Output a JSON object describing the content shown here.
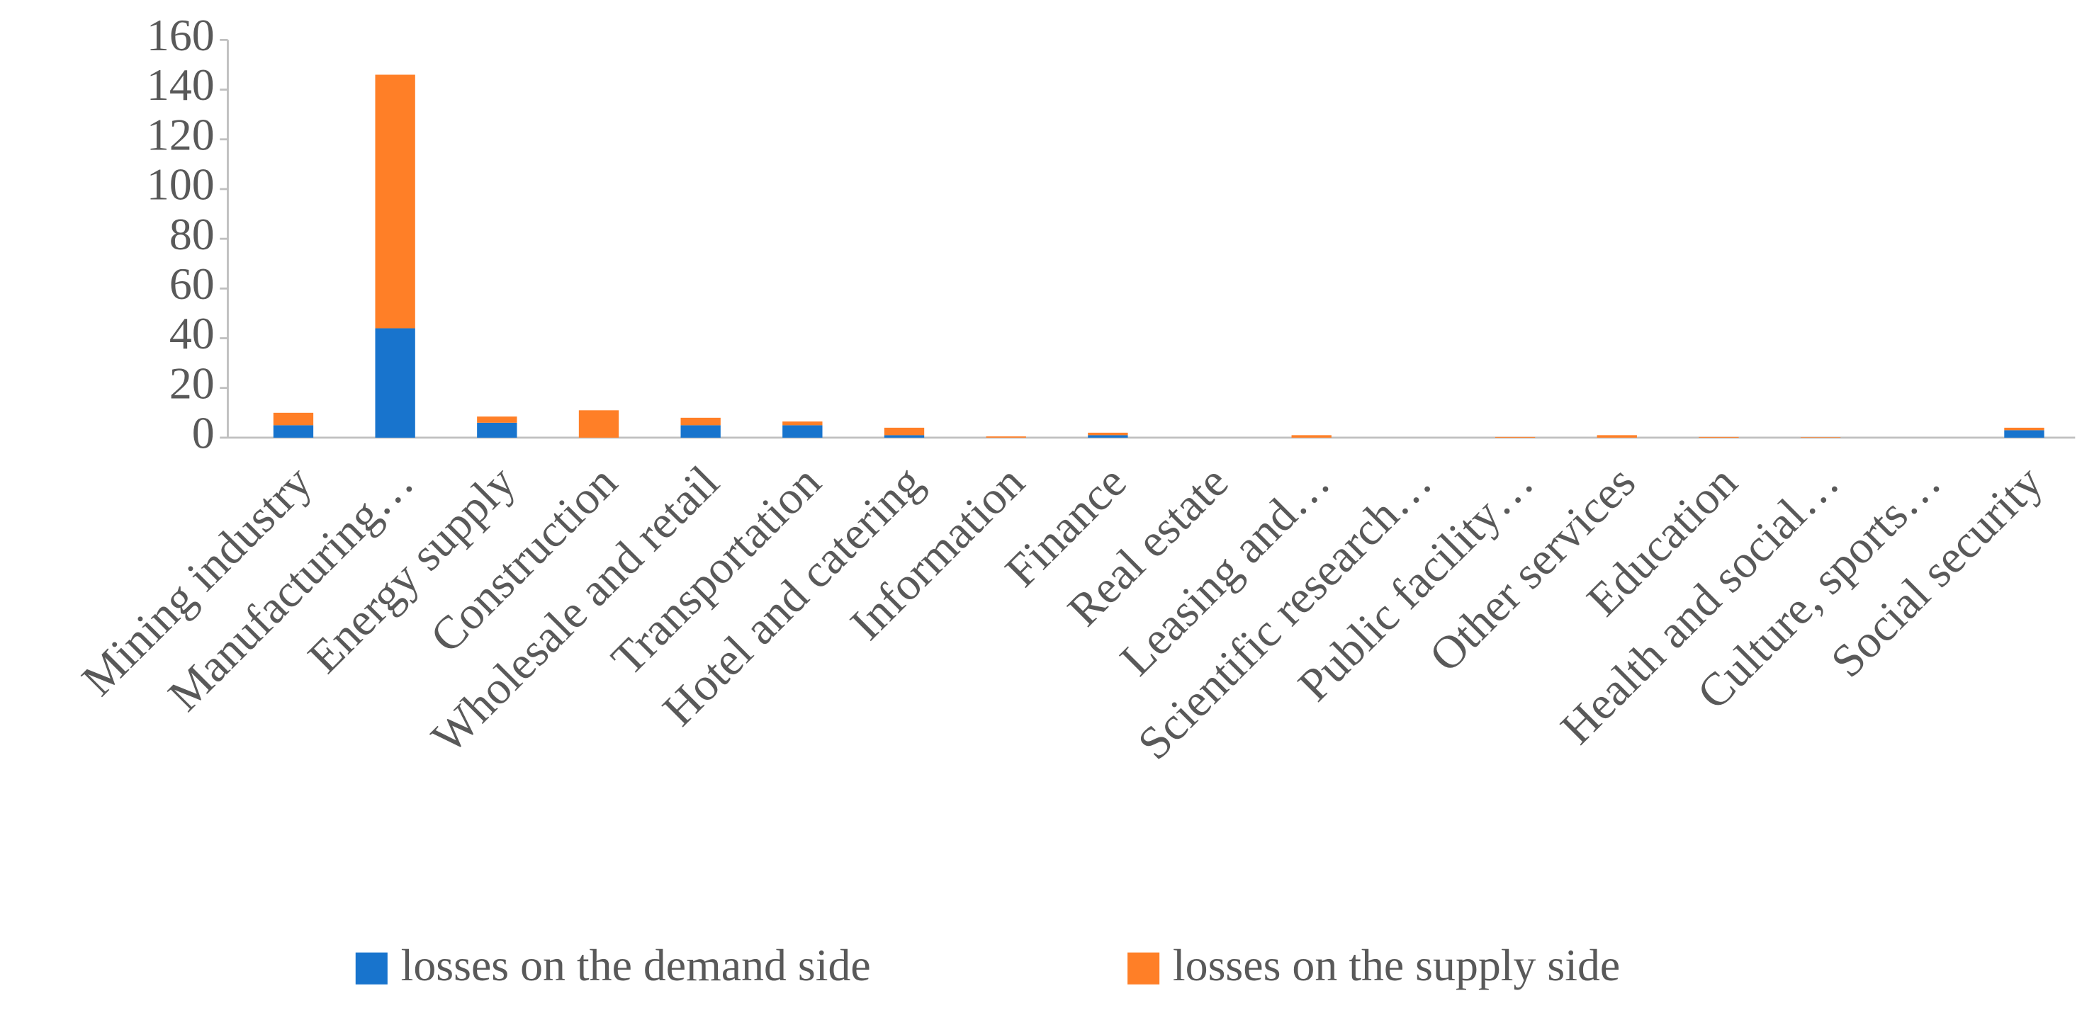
{
  "chart_data": {
    "type": "stacked_bar",
    "categories": [
      "Mining industry",
      "Manufacturing…",
      "Energy supply",
      "Construction",
      "Wholesale and retail",
      "Transportation",
      "Hotel and catering",
      "Information",
      "Finance",
      "Real estate",
      "Leasing and…",
      "Scientific research…",
      "Public facility…",
      "Other services",
      "Education",
      "Health and social…",
      "Culture, sports…",
      "Social security"
    ],
    "series": [
      {
        "name": "losses on the demand side",
        "color": "#1874cd",
        "values": [
          5,
          44,
          6,
          0,
          5,
          5,
          1,
          0,
          1,
          0,
          0,
          0,
          0,
          0,
          0,
          0,
          0,
          3
        ]
      },
      {
        "name": "losses on the supply side",
        "color": "#ff7f27",
        "values": [
          5,
          102,
          2.5,
          11,
          3,
          1.5,
          3,
          0.5,
          1,
          0,
          1,
          0,
          0.3,
          1,
          0.3,
          0.2,
          0,
          1
        ]
      }
    ],
    "ylim": [
      0,
      160
    ],
    "yticks": [
      0,
      20,
      40,
      60,
      80,
      100,
      120,
      140,
      160
    ],
    "legend": "bottom"
  }
}
